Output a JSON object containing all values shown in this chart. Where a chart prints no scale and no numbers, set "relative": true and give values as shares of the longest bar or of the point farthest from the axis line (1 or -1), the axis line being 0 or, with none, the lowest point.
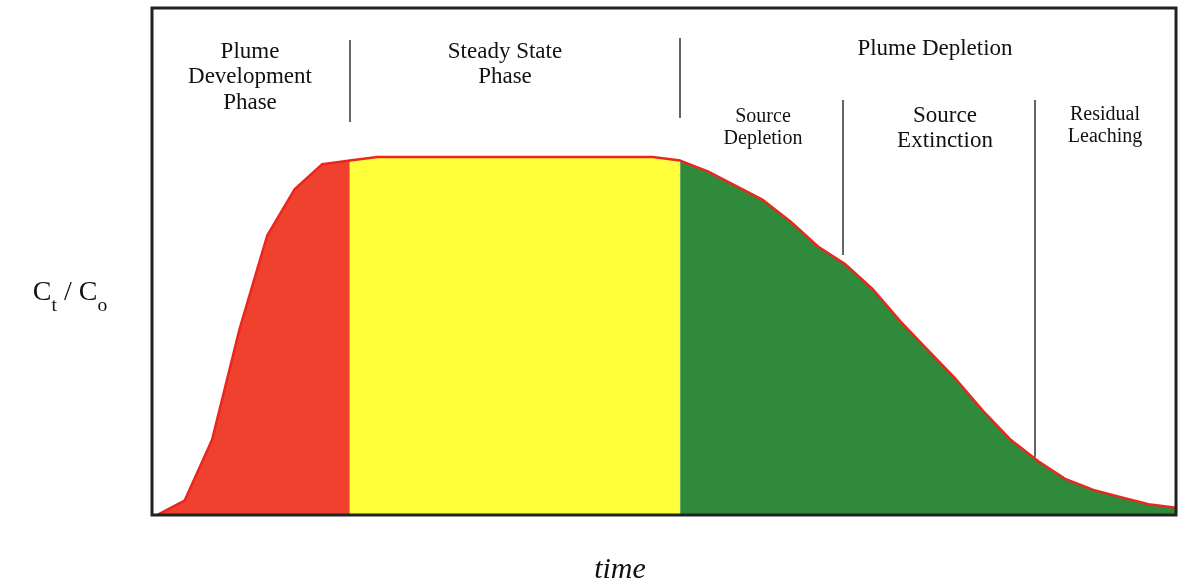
{
  "chart_data": {
    "type": "area",
    "relative": true,
    "xlabel": "time",
    "ylabel": "C$_{t}$ / C$_{o}$",
    "categories": [
      null,
      null,
      null,
      null,
      null,
      null,
      null,
      null,
      null,
      null,
      null,
      null,
      null,
      null,
      null,
      null,
      null,
      null,
      null,
      null,
      null,
      null,
      null,
      null,
      null,
      null,
      null,
      null,
      null,
      null,
      null,
      null,
      null,
      null,
      null,
      null,
      null,
      null
    ],
    "annotations": [
      "Plume\nDevelopment\nPhase",
      "Steady State\nPhase",
      "Plume Depletion",
      "Source\nDepletion",
      "Source\nExtinction",
      "Residual\nLeaching"
    ],
    "series": [
      {
        "color": "#f0402e",
        "values": [
          0,
          0.04,
          0.21,
          0.52,
          0.78,
          0.91,
          0.98,
          0.99,
          null,
          null,
          null,
          null,
          null,
          null,
          null,
          null,
          null,
          null,
          null,
          null,
          null,
          null,
          null,
          null,
          null,
          null,
          null,
          null,
          null,
          null,
          null,
          null,
          null,
          null,
          null,
          null,
          null,
          null
        ]
      },
      {
        "color": "#ffff3a",
        "values": [
          null,
          null,
          null,
          null,
          null,
          null,
          null,
          0.99,
          1,
          1,
          1,
          1,
          1,
          1,
          1,
          1,
          1,
          1,
          1,
          0.99,
          null,
          null,
          null,
          null,
          null,
          null,
          null,
          null,
          null,
          null,
          null,
          null,
          null,
          null,
          null,
          null,
          null,
          null
        ]
      },
      {
        "color": "#2f8a3c",
        "values": [
          null,
          null,
          null,
          null,
          null,
          null,
          null,
          null,
          null,
          null,
          null,
          null,
          null,
          null,
          null,
          null,
          null,
          null,
          null,
          0.99,
          0.96,
          0.92,
          0.88,
          0.82,
          0.75,
          0.7,
          0.63,
          0.54,
          0.46,
          0.38,
          0.29,
          0.21,
          0.15,
          0.1,
          0.07,
          0.05,
          0.03,
          0.02
        ]
      },
      {
        "type": "line",
        "color": "#e8281e",
        "values": [
          0,
          0.04,
          0.21,
          0.52,
          0.78,
          0.91,
          0.98,
          0.99,
          1,
          1,
          1,
          1,
          1,
          1,
          1,
          1,
          1,
          1,
          1,
          0.99,
          0.96,
          0.92,
          0.88,
          0.82,
          0.75,
          0.7,
          0.63,
          0.54,
          0.46,
          0.38,
          0.29,
          0.21,
          0.15,
          0.1,
          0.07,
          0.05,
          0.03,
          0.02
        ]
      }
    ]
  }
}
